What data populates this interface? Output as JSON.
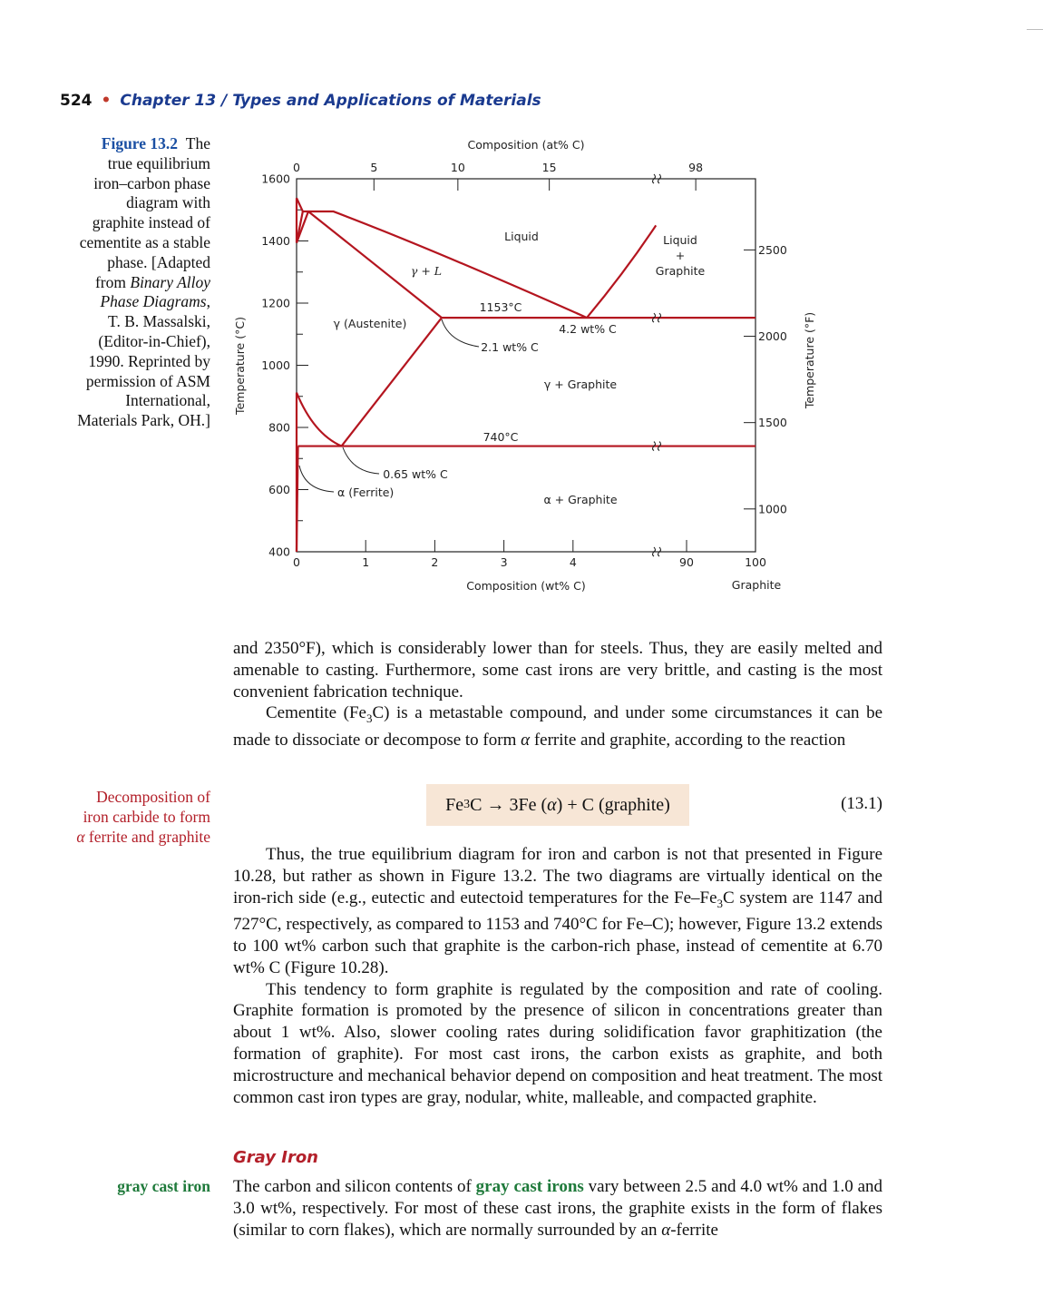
{
  "header": {
    "page_number": "524",
    "bullet": "•",
    "chapter": "Chapter 13 / Types and Applications of Materials"
  },
  "figure": {
    "label": "Figure 13.2",
    "caption": {
      "l1": "The",
      "l2": "true equilibrium",
      "l3": "iron–carbon phase",
      "l4": "diagram with",
      "l5": "graphite instead of",
      "l6": "cementite as a stable",
      "l7": "phase. [Adapted",
      "l8_a": "from ",
      "l8_b": "Binary Alloy",
      "l9_a": "Phase Diagrams",
      "l9_b": ",",
      "l10": "T. B. Massalski,",
      "l11": "(Editor-in-Chief),",
      "l12": "1990. Reprinted by",
      "l13": "permission of ASM",
      "l14": "International,",
      "l15": "Materials Park, OH.]"
    }
  },
  "chart_data": {
    "type": "line",
    "title": "",
    "xlabel": "Composition (wt% C)",
    "xlabel_top": "Composition (at% C)",
    "ylabel": "Temperature (°C)",
    "ylabel_right": "Temperature (°F)",
    "xlim": [
      0,
      100
    ],
    "ylim": [
      400,
      1600
    ],
    "x_ticks": [
      "0",
      "1",
      "2",
      "3",
      "4",
      "90",
      "100"
    ],
    "x_ticks_top": [
      "0",
      "5",
      "10",
      "15",
      "98"
    ],
    "y_ticks": [
      "400",
      "600",
      "800",
      "1000",
      "1200",
      "1400",
      "1600"
    ],
    "y_ticks_right": [
      "1000",
      "1500",
      "2000",
      "2500"
    ],
    "x_axis_break": "between 4.7 and 90 wt% C",
    "corner_label": "Graphite",
    "phase_labels": {
      "liquid": "Liquid",
      "liquid_graphite_a": "Liquid",
      "liquid_graphite_b": "+",
      "liquid_graphite_c": "Graphite",
      "gamma_liquid": "γ + L",
      "austenite": "γ (Austenite)",
      "gamma_graphite": "γ + Graphite",
      "alpha_graphite": "α + Graphite",
      "ferrite": "α (Ferrite)"
    },
    "annotations": {
      "eutectic_temp": "1153°C",
      "eutectic_comp": "4.2 wt% C",
      "gamma_solubility": "2.1 wt% C",
      "eutectoid_temp": "740°C",
      "eutectoid_comp": "0.65 wt% C"
    },
    "series": [
      {
        "values": [
          [
            0,
            1538
          ],
          [
            0.09,
            1495
          ],
          [
            0.53,
            1495
          ],
          [
            4.2,
            1153
          ]
        ]
      },
      {
        "values": [
          [
            4.2,
            1153
          ],
          [
            5.2,
            1450
          ]
        ]
      },
      {
        "values": [
          [
            0.17,
            1495
          ],
          [
            2.1,
            1153
          ]
        ]
      },
      {
        "values": [
          [
            2.1,
            1153
          ],
          [
            100,
            1153
          ]
        ]
      },
      {
        "values": [
          [
            2.1,
            1153
          ],
          [
            0.65,
            740
          ]
        ]
      },
      {
        "values": [
          [
            0,
            912
          ],
          [
            0.65,
            740
          ]
        ]
      },
      {
        "values": [
          [
            0.02,
            740
          ],
          [
            100,
            740
          ]
        ]
      },
      {
        "values": [
          [
            0.02,
            740
          ],
          [
            0,
            400
          ]
        ]
      },
      {
        "values": [
          [
            0,
            1394
          ],
          [
            0.09,
            1495
          ]
        ]
      },
      {
        "values": [
          [
            0,
            1394
          ],
          [
            0.17,
            1495
          ]
        ]
      }
    ]
  },
  "paragraphs": {
    "p1": "and 2350°F), which is considerably lower than for steels. Thus, they are easily melted and amenable to casting. Furthermore, some cast irons are very brittle, and casting is the most convenient fabrication technique.",
    "p2_a": "Cementite (Fe",
    "p2_sub": "3",
    "p2_b": "C) is a metastable compound, and under some circumstances it can be made to dissociate or decompose to form ",
    "p2_alpha": "α",
    "p2_c": " ferrite and graphite, according to the reaction",
    "p3_a": "Thus, the true equilibrium diagram for iron and carbon is not that presented in Figure 10.28, but rather as shown in Figure 13.2. The two diagrams are virtually identical on the iron-rich side (e.g., eutectic and eutectoid temperatures for the Fe–Fe",
    "p3_sub": "3",
    "p3_b": "C system are 1147 and 727°C, respectively, as compared to 1153 and 740°C for Fe–C); however, Figure 13.2 extends to 100 wt% carbon such that graphite is the carbon-rich phase, instead of cementite at 6.70 wt% C (Figure 10.28).",
    "p4": "This tendency to form graphite is regulated by the composition and rate of cooling. Graphite formation is promoted by the presence of silicon in concentrations greater than about 1 wt%. Also, slower cooling rates during solidification favor graphitization (the formation of graphite). For most cast irons, the carbon exists as graphite, and both microstructure and mechanical behavior depend on composition and heat treatment. The most common cast iron types are gray, nodular, white, malleable, and compacted graphite.",
    "p5_a": "The carbon and silicon contents of ",
    "p5_term": "gray cast irons",
    "p5_b": " vary between 2.5 and 4.0 wt% and 1.0 and 3.0 wt%, respectively. For most of these cast irons, the graphite exists in the form of flakes (similar to corn flakes), which are normally surrounded by an ",
    "p5_alpha": "α",
    "p5_c": "-ferrite"
  },
  "margin_notes": {
    "decomp_1": "Decomposition of",
    "decomp_2": "iron carbide to form",
    "decomp_3_alpha": "α",
    "decomp_3": " ferrite and graphite",
    "gray": "gray cast iron"
  },
  "equation": {
    "fe": "Fe",
    "sub": "3",
    "rest": "C → 3Fe (",
    "alpha": "α",
    "end": ") + C (graphite)",
    "number": "(13.1)"
  },
  "section": {
    "heading": "Gray Iron"
  },
  "colors": {
    "curve": "#b4151f",
    "heading_blue": "#1a3a8f",
    "note_red": "#b3202a",
    "key_green": "#1f7a3b",
    "equation_bg": "#f7e6d6"
  }
}
